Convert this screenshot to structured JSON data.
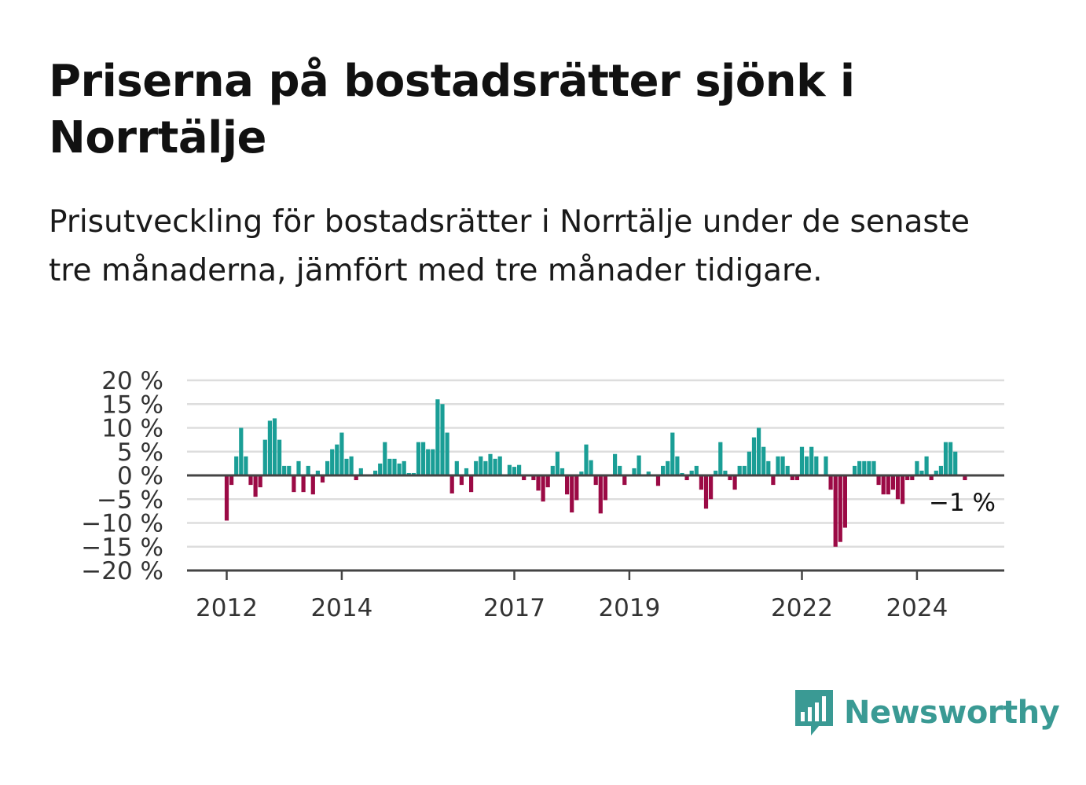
{
  "header": {
    "title": "Priserna på bostadsrätter sjönk i Norrtälje",
    "subtitle": "Prisutveckling för bostadsrätter i Norrtälje under de senaste tre månaderna, jämfört med tre månader tidigare."
  },
  "brand": {
    "name": "Newsworthy",
    "color": "#3a9a94",
    "icon": "bar-chart-speech-bubble-icon"
  },
  "chart_data": {
    "type": "bar",
    "ylim": [
      -20,
      20
    ],
    "y_ticks": [
      {
        "value": 20,
        "label": "20 %"
      },
      {
        "value": 15,
        "label": "15 %"
      },
      {
        "value": 10,
        "label": "10 %"
      },
      {
        "value": 5,
        "label": "5 %"
      },
      {
        "value": 0,
        "label": "0 %"
      },
      {
        "value": -5,
        "label": "−5 %"
      },
      {
        "value": -10,
        "label": "−10 %"
      },
      {
        "value": -15,
        "label": "−15 %"
      },
      {
        "value": -20,
        "label": "−20 %"
      }
    ],
    "x_ticks": [
      "2012",
      "2014",
      "2017",
      "2019",
      "2022",
      "2024"
    ],
    "x_tick_index": [
      0,
      24,
      60,
      84,
      120,
      144
    ],
    "grid": true,
    "positive_color": "#1a9e96",
    "negative_color": "#9b0a45",
    "start": "2012-01",
    "values": [
      -9.5,
      -2,
      4,
      10,
      4,
      -2,
      -4.5,
      -2.5,
      7.5,
      11.5,
      12,
      7.5,
      2,
      2,
      -3.5,
      3,
      -3.5,
      2,
      -4,
      1,
      -1.5,
      3,
      5.5,
      6.5,
      9,
      3.5,
      4,
      -1,
      1.5,
      0,
      0,
      1,
      2.5,
      7,
      3.5,
      3.5,
      2.5,
      3,
      0.5,
      0.5,
      7,
      7,
      5.5,
      5.5,
      16,
      15,
      9,
      -3.8,
      3,
      -2,
      1.5,
      -3.5,
      3,
      4,
      3,
      4.5,
      3.5,
      4,
      0,
      2.2,
      1.8,
      2.2,
      -1,
      0,
      -1,
      -3.2,
      -5.5,
      -2.5,
      2,
      5,
      1.5,
      -4,
      -7.8,
      -5.2,
      0.8,
      6.5,
      3.2,
      -2,
      -8,
      -5.2,
      0,
      4.5,
      2,
      -2,
      0,
      1.5,
      4.2,
      0,
      0.8,
      0,
      -2.2,
      2,
      3,
      9,
      4,
      0.5,
      -1,
      1,
      2,
      -3,
      -7,
      -5,
      1,
      7,
      1,
      -1,
      -3,
      2,
      2,
      5,
      8,
      10,
      6,
      3,
      -2,
      4,
      4,
      2,
      -1,
      -1,
      6,
      4,
      6,
      4,
      0,
      4,
      -3,
      -15,
      -14,
      -11,
      0,
      2,
      3,
      3,
      3,
      3,
      -2,
      -4,
      -4,
      -3,
      -5,
      -6,
      -1,
      -1,
      3,
      1,
      4,
      -1,
      1,
      2,
      7,
      7,
      5,
      0,
      -1
    ],
    "annotation": "−1 %"
  }
}
